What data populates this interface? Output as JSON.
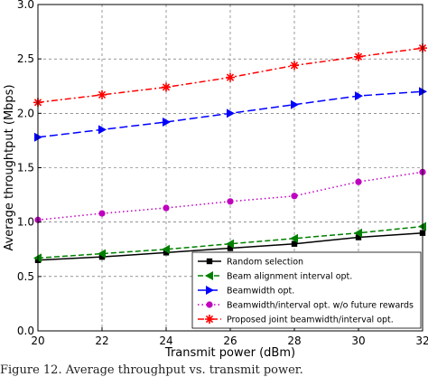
{
  "chart_data": {
    "type": "line",
    "xlabel": "Transmit power (dBm)",
    "ylabel": "Average throughtput (Mbps)",
    "xlim": [
      20,
      32
    ],
    "ylim": [
      0.0,
      3.0
    ],
    "xticks": [
      20,
      22,
      24,
      26,
      28,
      30,
      32
    ],
    "yticks": [
      0.0,
      0.5,
      1.0,
      1.5,
      2.0,
      2.5,
      3.0
    ],
    "ytick_labels": [
      "0.0",
      "0.5",
      "1.0",
      "1.5",
      "2.0",
      "2.5",
      "3.0"
    ],
    "grid": true,
    "legend_position": "lower-right",
    "x": [
      20,
      22,
      24,
      26,
      28,
      30,
      32
    ],
    "series": [
      {
        "name": "Random selection",
        "color": "#000000",
        "marker": "square",
        "dash": "solid",
        "values": [
          0.65,
          0.68,
          0.72,
          0.76,
          0.8,
          0.86,
          0.9
        ]
      },
      {
        "name": "Beam alignment interval opt.",
        "color": "#008000",
        "marker": "triangle-left",
        "dash": "dashed",
        "values": [
          0.67,
          0.71,
          0.75,
          0.8,
          0.85,
          0.9,
          0.96
        ]
      },
      {
        "name": "Beamwidth opt.",
        "color": "#0000ff",
        "marker": "triangle-right",
        "dash": "longdash",
        "values": [
          1.78,
          1.85,
          1.92,
          2.0,
          2.08,
          2.16,
          2.2
        ]
      },
      {
        "name": "Beamwidth/interval opt. w/o future rewards",
        "color": "#bf00bf",
        "marker": "circle",
        "dash": "dotted",
        "values": [
          1.02,
          1.08,
          1.13,
          1.19,
          1.24,
          1.37,
          1.46
        ]
      },
      {
        "name": "Proposed joint beamwidth/interval opt.",
        "color": "#ff0000",
        "marker": "star",
        "dash": "dashdot",
        "values": [
          2.1,
          2.17,
          2.24,
          2.33,
          2.44,
          2.52,
          2.6
        ]
      }
    ]
  },
  "caption": "Figure 12. Average throughput vs. transmit power."
}
